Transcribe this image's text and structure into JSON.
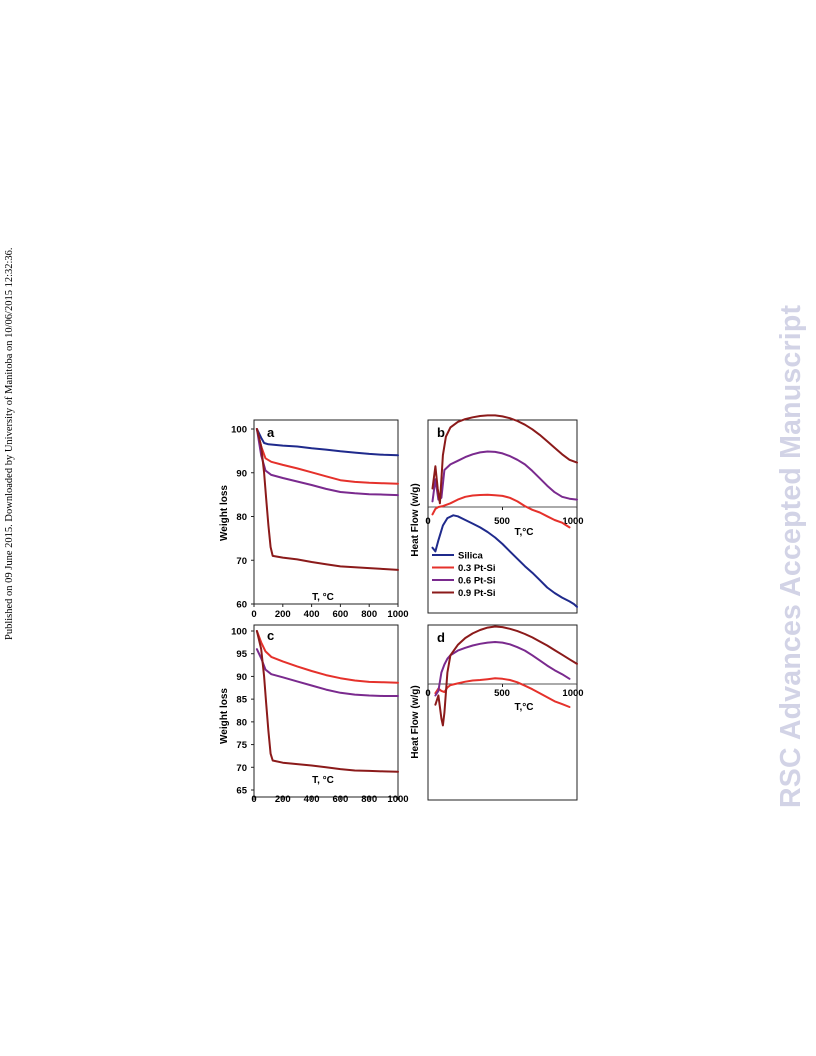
{
  "side_note": "Published on 09 June 2015. Downloaded by University of Manitoba on 10/06/2015 12:32:36.",
  "watermark": "RSC Advances Accepted Manuscript",
  "colors": {
    "silica": "#1f2a8c",
    "pt03": "#e5312b",
    "pt06": "#7a2a8e",
    "pt09": "#8b1a1a",
    "axis": "#000000"
  },
  "chart_data": [
    {
      "panel": "a",
      "type": "line",
      "xlabel": "T, °C",
      "ylabel": "Weight loss",
      "xlim": [
        0,
        1000
      ],
      "ylim": [
        60,
        100
      ],
      "xticks": [
        "0",
        "200",
        "400",
        "600",
        "800",
        "1000"
      ],
      "yticks": [
        "60",
        "70",
        "80",
        "90",
        "100"
      ],
      "series": [
        {
          "key": "silica",
          "x": [
            20,
            50,
            70,
            100,
            200,
            300,
            400,
            500,
            600,
            700,
            800,
            900,
            1000
          ],
          "y": [
            100,
            98,
            96.8,
            96.5,
            96.2,
            96,
            95.6,
            95.3,
            94.9,
            94.6,
            94.3,
            94.1,
            94.0
          ]
        },
        {
          "key": "pt03",
          "x": [
            20,
            50,
            80,
            120,
            200,
            300,
            400,
            500,
            600,
            700,
            800,
            900,
            1000
          ],
          "y": [
            100,
            96,
            93.3,
            92.5,
            91.8,
            91,
            90.1,
            89.2,
            88.3,
            87.9,
            87.7,
            87.6,
            87.5
          ]
        },
        {
          "key": "pt06",
          "x": [
            20,
            50,
            80,
            120,
            200,
            300,
            400,
            500,
            600,
            700,
            800,
            900,
            1000
          ],
          "y": [
            100,
            94,
            90.5,
            89.5,
            88.8,
            88,
            87.2,
            86.3,
            85.6,
            85.3,
            85.1,
            85.0,
            84.9
          ]
        },
        {
          "key": "pt09",
          "x": [
            20,
            50,
            70,
            85,
            100,
            115,
            130,
            200,
            300,
            400,
            500,
            600,
            700,
            800,
            900,
            1000
          ],
          "y": [
            100,
            96,
            90,
            84,
            78,
            73,
            71,
            70.6,
            70.2,
            69.6,
            69.1,
            68.6,
            68.4,
            68.2,
            68.0,
            67.8
          ]
        }
      ]
    },
    {
      "panel": "b",
      "type": "line",
      "xlabel": "T,°C",
      "ylabel": "Heat Flow (w/g)",
      "xlim": [
        0,
        1000
      ],
      "xticks": [
        "0",
        "500",
        "1000"
      ],
      "legend": [
        "Silica",
        "0.3 Pt-Si",
        "0.6 Pt-Si",
        "0.9 Pt-Si"
      ],
      "legend_keys": [
        "silica",
        "pt03",
        "pt06",
        "pt09"
      ],
      "legend_placement": "bottom-left",
      "series": [
        {
          "key": "silica",
          "x": [
            30,
            50,
            70,
            100,
            130,
            170,
            200,
            250,
            300,
            350,
            400,
            450,
            500,
            550,
            600,
            650,
            700,
            750,
            800,
            850,
            900,
            950,
            980,
            1000
          ],
          "y": [
            -2.2,
            -2.4,
            -1.8,
            -1,
            -0.6,
            -0.45,
            -0.5,
            -0.7,
            -0.9,
            -1.1,
            -1.35,
            -1.65,
            -2.0,
            -2.4,
            -2.8,
            -3.2,
            -3.55,
            -3.95,
            -4.35,
            -4.65,
            -4.9,
            -5.1,
            -5.25,
            -5.4
          ]
        },
        {
          "key": "pt03",
          "x": [
            30,
            50,
            70,
            100,
            150,
            200,
            250,
            300,
            350,
            400,
            450,
            500,
            550,
            600,
            650,
            700,
            750,
            800,
            850,
            900,
            920,
            950
          ],
          "y": [
            -0.4,
            -0.1,
            0.0,
            0.05,
            0.2,
            0.4,
            0.55,
            0.62,
            0.65,
            0.66,
            0.64,
            0.6,
            0.5,
            0.3,
            0.05,
            -0.15,
            -0.3,
            -0.5,
            -0.7,
            -0.85,
            -0.95,
            -1.1
          ]
        },
        {
          "key": "pt06",
          "x": [
            30,
            50,
            70,
            90,
            110,
            150,
            200,
            250,
            300,
            350,
            400,
            450,
            500,
            550,
            600,
            650,
            700,
            750,
            800,
            850,
            900,
            950,
            1000
          ],
          "y": [
            0.3,
            1.5,
            0.4,
            0.5,
            2.0,
            2.3,
            2.5,
            2.7,
            2.85,
            2.95,
            3.0,
            2.98,
            2.9,
            2.75,
            2.55,
            2.3,
            1.95,
            1.55,
            1.15,
            0.8,
            0.55,
            0.45,
            0.4
          ]
        },
        {
          "key": "pt09",
          "x": [
            30,
            50,
            65,
            80,
            100,
            120,
            150,
            200,
            250,
            300,
            350,
            400,
            450,
            500,
            550,
            600,
            650,
            700,
            750,
            800,
            850,
            900,
            950,
            1000
          ],
          "y": [
            1.0,
            2.2,
            1.0,
            0.2,
            2.8,
            3.8,
            4.3,
            4.6,
            4.75,
            4.85,
            4.92,
            4.95,
            4.95,
            4.9,
            4.8,
            4.65,
            4.45,
            4.2,
            3.9,
            3.55,
            3.2,
            2.85,
            2.55,
            2.4
          ]
        }
      ]
    },
    {
      "panel": "c",
      "type": "line",
      "xlabel": "T, °C",
      "ylabel": "Weight loss",
      "xlim": [
        0,
        1000
      ],
      "ylim": [
        65,
        100
      ],
      "xticks": [
        "0",
        "200",
        "400",
        "600",
        "800",
        "1000"
      ],
      "yticks": [
        "65",
        "70",
        "75",
        "80",
        "85",
        "90",
        "95",
        "100"
      ],
      "series": [
        {
          "key": "pt03",
          "x": [
            20,
            50,
            80,
            120,
            200,
            300,
            400,
            500,
            600,
            700,
            800,
            900,
            1000
          ],
          "y": [
            100,
            97.5,
            95.5,
            94.3,
            93.3,
            92.2,
            91.2,
            90.3,
            89.6,
            89.1,
            88.8,
            88.7,
            88.6
          ]
        },
        {
          "key": "pt06",
          "x": [
            20,
            50,
            80,
            120,
            200,
            300,
            400,
            500,
            600,
            700,
            800,
            900,
            1000
          ],
          "y": [
            96,
            94,
            91.5,
            90.5,
            89.8,
            88.9,
            88.0,
            87.1,
            86.4,
            86.0,
            85.8,
            85.7,
            85.7
          ]
        },
        {
          "key": "pt09",
          "x": [
            20,
            50,
            70,
            85,
            100,
            115,
            130,
            200,
            300,
            400,
            500,
            600,
            700,
            800,
            900,
            1000
          ],
          "y": [
            100,
            96,
            90,
            84,
            78,
            73,
            71.5,
            71.0,
            70.7,
            70.4,
            70.0,
            69.6,
            69.3,
            69.2,
            69.1,
            69.0
          ]
        }
      ]
    },
    {
      "panel": "d",
      "type": "line",
      "xlabel": "T,°C",
      "ylabel": "Heat Flow (w/g)",
      "xlim": [
        0,
        1000
      ],
      "xticks": [
        "0",
        "500",
        "1000"
      ],
      "series": [
        {
          "key": "pt03",
          "x": [
            50,
            70,
            90,
            110,
            130,
            150,
            200,
            250,
            300,
            350,
            400,
            450,
            500,
            550,
            600,
            650,
            700,
            750,
            800,
            850,
            900,
            950
          ],
          "y": [
            -0.8,
            -0.4,
            -0.6,
            -0.7,
            -0.3,
            -0.1,
            0.05,
            0.2,
            0.3,
            0.35,
            0.42,
            0.5,
            0.45,
            0.35,
            0.15,
            -0.15,
            -0.45,
            -0.8,
            -1.15,
            -1.5,
            -1.75,
            -2.0
          ]
        },
        {
          "key": "pt06",
          "x": [
            50,
            70,
            90,
            110,
            130,
            150,
            200,
            250,
            300,
            350,
            400,
            450,
            500,
            550,
            600,
            650,
            700,
            750,
            800,
            850,
            900,
            950
          ],
          "y": [
            -1.0,
            -0.6,
            1.0,
            1.7,
            2.2,
            2.5,
            2.9,
            3.15,
            3.35,
            3.5,
            3.6,
            3.65,
            3.6,
            3.45,
            3.2,
            2.9,
            2.5,
            2.05,
            1.6,
            1.2,
            0.85,
            0.45
          ]
        },
        {
          "key": "pt09",
          "x": [
            50,
            70,
            90,
            100,
            110,
            130,
            150,
            200,
            250,
            300,
            350,
            400,
            450,
            500,
            550,
            600,
            650,
            700,
            750,
            800,
            850,
            900,
            950,
            1000
          ],
          "y": [
            -1.8,
            -1.0,
            -3.0,
            -3.6,
            -2.5,
            1.0,
            2.5,
            3.4,
            4.0,
            4.4,
            4.7,
            4.9,
            5.0,
            4.95,
            4.8,
            4.6,
            4.35,
            4.05,
            3.7,
            3.35,
            2.95,
            2.55,
            2.15,
            1.75
          ]
        }
      ]
    }
  ]
}
